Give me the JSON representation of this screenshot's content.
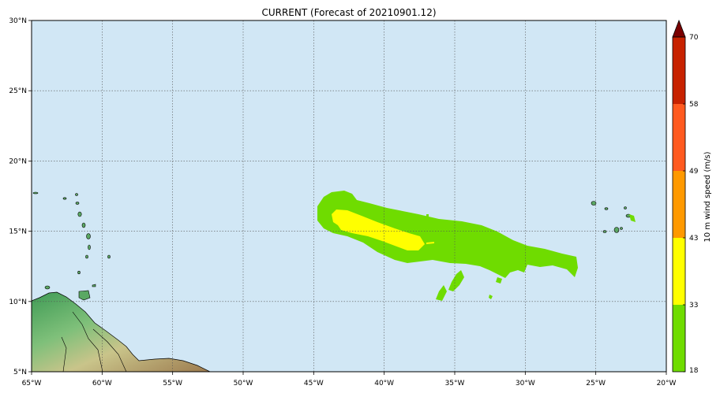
{
  "title": "CURRENT (Forecast of 20210901.12)",
  "map": {
    "lon_range": [
      -65,
      -20
    ],
    "lat_range": [
      5,
      30
    ],
    "ocean_color": "#d1e7f5",
    "x_ticks": [
      {
        "lon": -65,
        "label": "65°W"
      },
      {
        "lon": -60,
        "label": "60°W"
      },
      {
        "lon": -55,
        "label": "55°W"
      },
      {
        "lon": -50,
        "label": "50°W"
      },
      {
        "lon": -45,
        "label": "45°W"
      },
      {
        "lon": -40,
        "label": "40°W"
      },
      {
        "lon": -35,
        "label": "35°W"
      },
      {
        "lon": -30,
        "label": "30°W"
      },
      {
        "lon": -25,
        "label": "25°W"
      },
      {
        "lon": -20,
        "label": "20°W"
      }
    ],
    "y_ticks": [
      {
        "lat": 5,
        "label": "5°N"
      },
      {
        "lat": 10,
        "label": "10°N"
      },
      {
        "lat": 15,
        "label": "15°N"
      },
      {
        "lat": 20,
        "label": "20°N"
      },
      {
        "lat": 25,
        "label": "25°N"
      },
      {
        "lat": 30,
        "label": "30°N"
      }
    ],
    "grid": true
  },
  "colorbar": {
    "label": "10 m wind speed (m/s)",
    "ticks": [
      "18",
      "33",
      "43",
      "49",
      "58",
      "70"
    ],
    "bins": [
      {
        "from": 18,
        "to": 33,
        "color": "#6fdc00"
      },
      {
        "from": 33,
        "to": 43,
        "color": "#ffff00"
      },
      {
        "from": 43,
        "to": 49,
        "color": "#ff9900"
      },
      {
        "from": 49,
        "to": 58,
        "color": "#ff5a1f"
      },
      {
        "from": 58,
        "to": 70,
        "color": "#c72200"
      }
    ],
    "extend_color": "#7a0000"
  },
  "wind_field": {
    "outer_color": "#6fdc00",
    "core_color": "#ffff00"
  }
}
